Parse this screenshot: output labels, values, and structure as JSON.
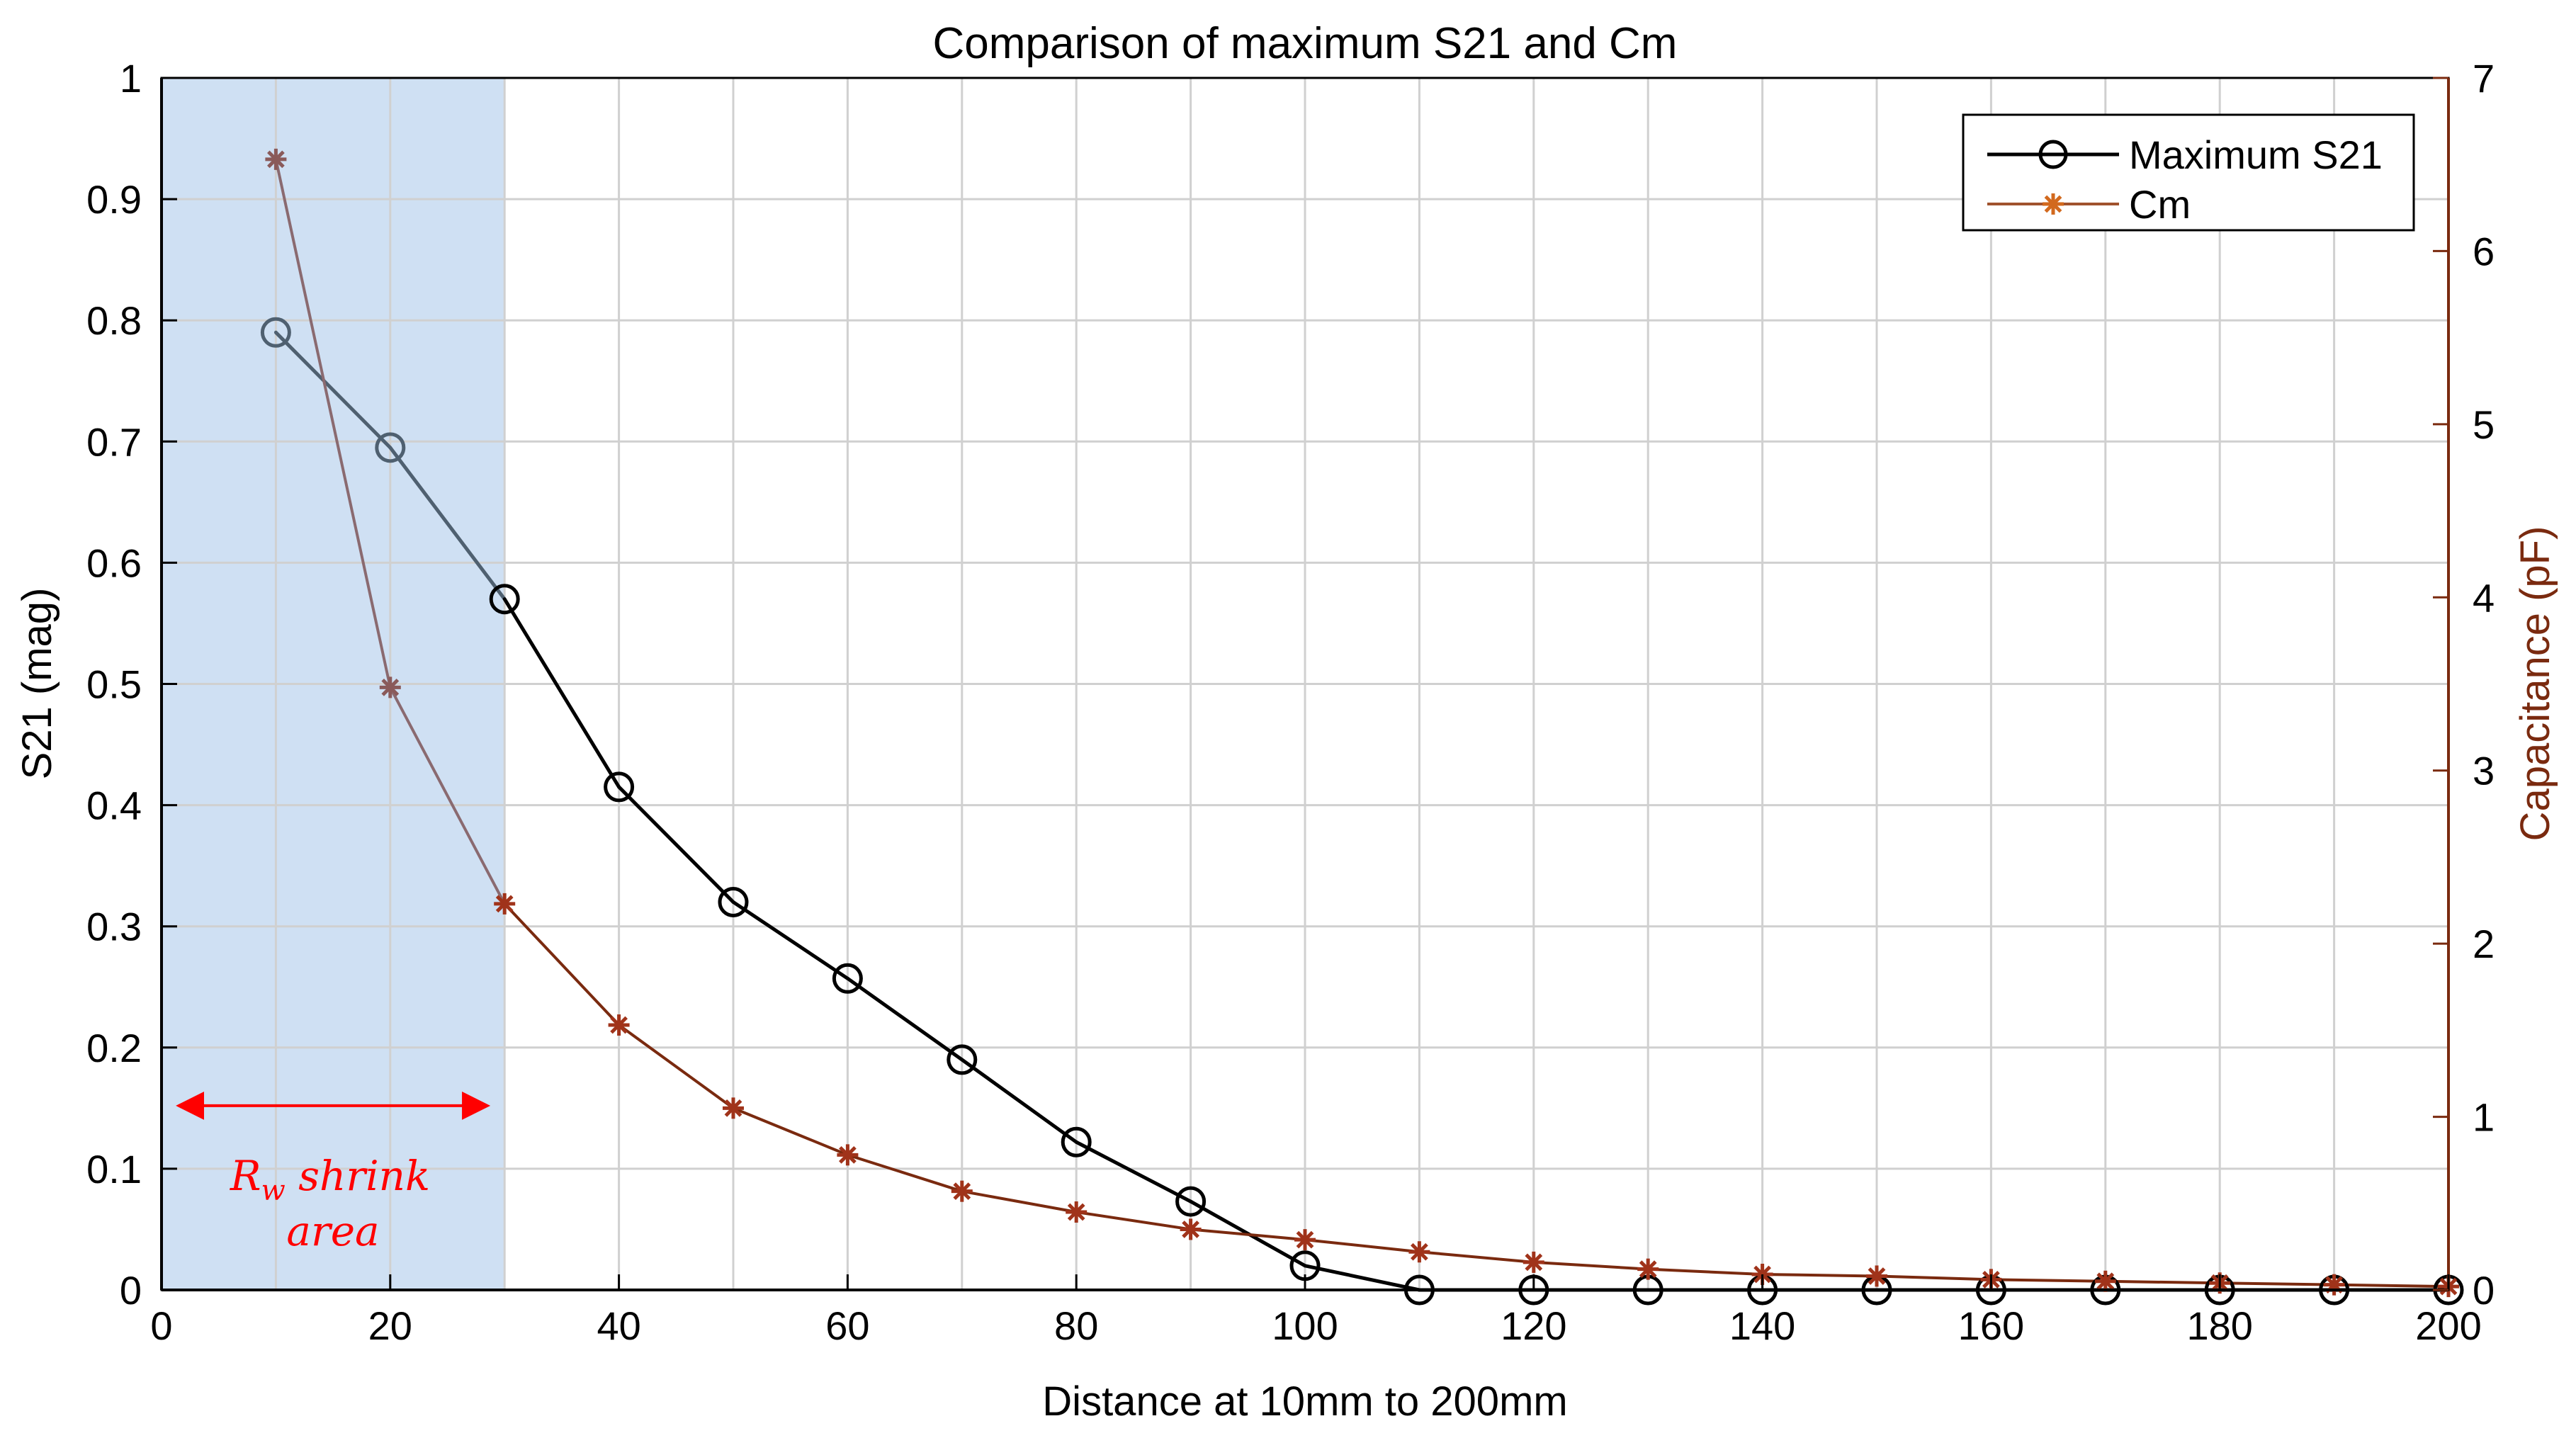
{
  "chart_data": {
    "type": "line",
    "title": "Comparison of maximum S21 and Cm",
    "xlabel": "Distance at 10mm to 200mm",
    "ylabel": "S21 (mag)",
    "y2label": "Capacitance (pF)",
    "xlim": [
      0,
      200
    ],
    "ylim": [
      0,
      1
    ],
    "y2lim": [
      0,
      7
    ],
    "xticks": [
      0,
      20,
      40,
      60,
      80,
      100,
      120,
      140,
      160,
      180,
      200
    ],
    "yticks": [
      0,
      0.1,
      0.2,
      0.3,
      0.4,
      0.5,
      0.6,
      0.7,
      0.8,
      0.9,
      1
    ],
    "y2ticks": [
      0,
      1,
      2,
      3,
      4,
      5,
      6,
      7
    ],
    "grid": true,
    "legend_position": "top-right",
    "x": [
      10,
      20,
      30,
      40,
      50,
      60,
      70,
      80,
      90,
      100,
      110,
      120,
      130,
      140,
      150,
      160,
      170,
      180,
      190,
      200
    ],
    "series": [
      {
        "name": "Maximum S21",
        "axis": "left",
        "marker": "circle",
        "color": "#000000",
        "values": [
          0.79,
          0.695,
          0.57,
          0.415,
          0.32,
          0.257,
          0.19,
          0.122,
          0.073,
          0.02,
          0.0,
          0.0,
          0.0,
          0.0,
          0.0,
          0.0,
          0.0,
          0.0,
          0.0,
          0.0
        ]
      },
      {
        "name": "Cm",
        "axis": "right",
        "marker": "asterisk",
        "color": "#7a2a0f",
        "values": [
          6.53,
          3.48,
          2.23,
          1.53,
          1.05,
          0.78,
          0.57,
          0.45,
          0.35,
          0.29,
          0.22,
          0.16,
          0.12,
          0.09,
          0.08,
          0.06,
          0.05,
          0.04,
          0.03,
          0.02
        ]
      }
    ],
    "shaded_region": {
      "x_from": 0,
      "x_to": 30,
      "color": "#cfe0f3"
    },
    "annotation": {
      "arrow_from": 1,
      "arrow_to": 29,
      "arrow_y": 0.152,
      "label_symbol": "R",
      "label_subscript": "w",
      "label_line1_rest": " shrink",
      "label_line2": "area",
      "color": "#ff0000"
    }
  }
}
